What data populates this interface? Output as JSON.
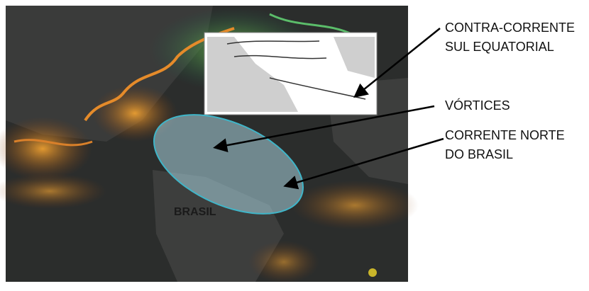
{
  "callouts": [
    {
      "lines": [
        "CONTRA-CORRENTE",
        "SUL EQUATORIAL"
      ]
    },
    {
      "lines": [
        "VÓRTICES"
      ]
    },
    {
      "lines": [
        "CORRENTE NORTE",
        "DO BRASIL"
      ]
    }
  ],
  "map_label": "BRASIL"
}
